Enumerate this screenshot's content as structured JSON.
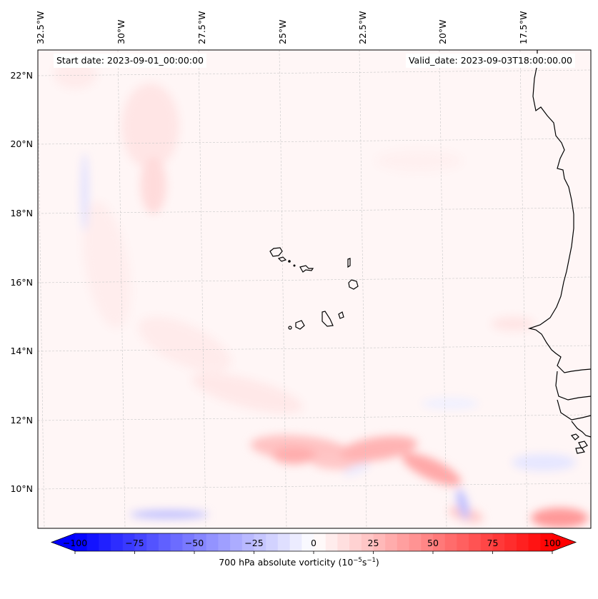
{
  "map": {
    "start_date_label": "Start date: 2023-09-01_00:00:00",
    "valid_date_label": "Valid_date: 2023-09-03T18:00:00.00",
    "lon_labels": [
      "32.5°W",
      "30°W",
      "27.5°W",
      "25°W",
      "22.5°W",
      "20°W",
      "17.5°W"
    ],
    "lat_labels": [
      "22°N",
      "20°N",
      "18°N",
      "16°N",
      "14°N",
      "12°N",
      "10°N"
    ],
    "lon_values": [
      -32.5,
      -30,
      -27.5,
      -25,
      -22.5,
      -20,
      -17.5
    ],
    "lat_values": [
      22,
      20,
      18,
      16,
      14,
      12,
      10
    ],
    "extent": {
      "lon_min": -33.2,
      "lon_max": -15.5,
      "lat_min": 8.9,
      "lat_max": 22.7
    },
    "features": [
      "Cabo Verde islands",
      "West African coastline (Mauritania, Senegal, Gambia, Guinea-Bissau, Guinea)"
    ]
  },
  "colorbar": {
    "title_prefix": "700 hPa absolute vorticity (10",
    "title_exp1": "−5",
    "title_mid": "s",
    "title_exp2": "−1",
    "title_suffix": ")",
    "ticks": [
      "−100",
      "−75",
      "−50",
      "−25",
      "0",
      "25",
      "50",
      "75",
      "100"
    ],
    "tick_values": [
      -100,
      -75,
      -50,
      -25,
      0,
      25,
      50,
      75,
      100
    ],
    "min": -100,
    "max": 100,
    "levels": 40,
    "extend": "both",
    "cmap": "bwr",
    "neg_color": "#0000ff",
    "zero_color": "#ffffff",
    "pos_color": "#ff0000"
  },
  "chart_data": {
    "type": "heatmap",
    "title": "",
    "variable": "700 hPa absolute vorticity",
    "units": "10^-5 s^-1",
    "xlabel": "Longitude",
    "ylabel": "Latitude",
    "x_ticks": [
      "32.5°W",
      "30°W",
      "27.5°W",
      "25°W",
      "22.5°W",
      "20°W",
      "17.5°W"
    ],
    "y_ticks": [
      "22°N",
      "20°N",
      "18°N",
      "16°N",
      "14°N",
      "12°N",
      "10°N"
    ],
    "value_range": [
      -100,
      100
    ],
    "grid": true,
    "annotations": [
      "Start date: 2023-09-01_00:00:00",
      "Valid_date: 2023-09-03T18:00:00.00"
    ],
    "features": [
      {
        "desc": "background weak positive vorticity",
        "value": 3
      },
      {
        "desc": "positive band near 29-30°W, 17-20°N",
        "lon": -29.5,
        "lat": 18.8,
        "value": 12
      },
      {
        "desc": "diagonal positive band from 31°W,16°N toward 24°W,12°N",
        "lon": -27.5,
        "lat": 13,
        "value": 10
      },
      {
        "desc": "positive maximum near 25°W,11°N",
        "lon": -25,
        "lat": 11,
        "value": 30
      },
      {
        "desc": "positive maximum near 22.5°W,11.2°N",
        "lon": -22.5,
        "lat": 11.2,
        "value": 32
      },
      {
        "desc": "positive arc near 20.5°W,10.5°N",
        "lon": -20.5,
        "lat": 10.5,
        "value": 35
      },
      {
        "desc": "positive maximum near 16.5°W,9.2°N",
        "lon": -16.5,
        "lat": 9.2,
        "value": 45
      },
      {
        "desc": "negative streak near 29°W,9.3°N",
        "lon": -29,
        "lat": 9.3,
        "value": -20
      },
      {
        "desc": "negative streak near 31.7°W,18.5°N",
        "lon": -31.7,
        "lat": 18.5,
        "value": -8
      },
      {
        "desc": "negative spot near 19.5°W,9.5°N",
        "lon": -19.5,
        "lat": 9.5,
        "value": -18
      }
    ]
  }
}
